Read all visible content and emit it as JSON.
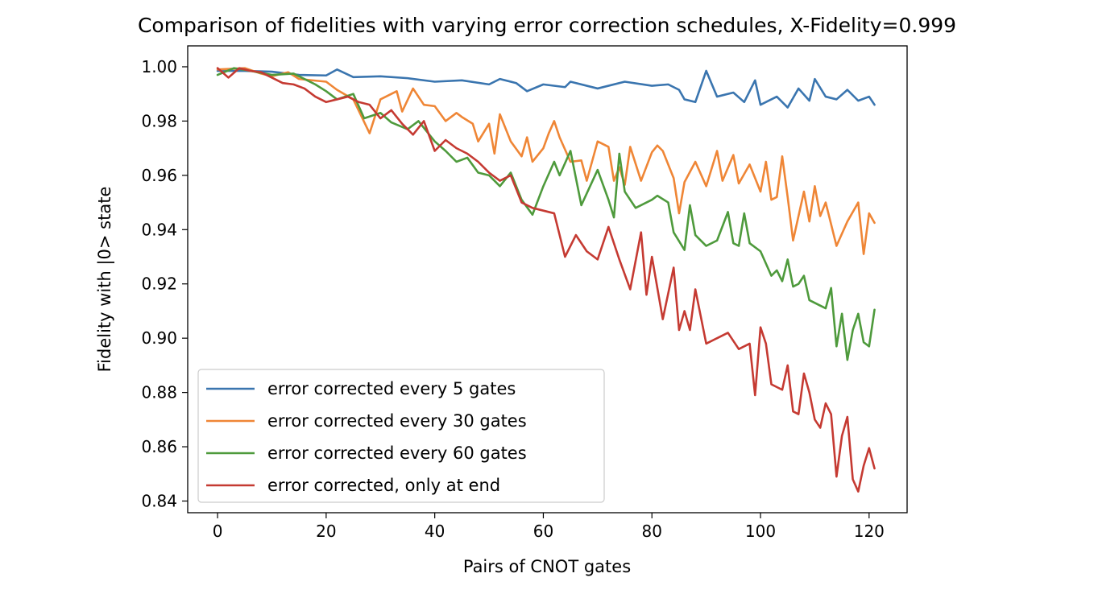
{
  "chart_data": {
    "type": "line",
    "title": "Comparison of fidelities with varying error correction schedules, X-Fidelity=0.999",
    "xlabel": "Pairs of CNOT gates",
    "ylabel": "Fidelity with |0> state",
    "xlim": [
      -5.5,
      127
    ],
    "ylim": [
      0.8357,
      1.0077
    ],
    "xticks": [
      0,
      20,
      40,
      60,
      80,
      100,
      120
    ],
    "xtick_labels": [
      "0",
      "20",
      "40",
      "60",
      "80",
      "100",
      "120"
    ],
    "yticks": [
      0.84,
      0.86,
      0.88,
      0.9,
      0.92,
      0.94,
      0.96,
      0.98,
      1.0
    ],
    "ytick_labels": [
      "0.84",
      "0.86",
      "0.88",
      "0.90",
      "0.92",
      "0.94",
      "0.96",
      "0.98",
      "1.00"
    ],
    "grid": false,
    "legend_position": "lower-left",
    "series": [
      {
        "name": "error corrected every 5 gates",
        "color": "#3a75af",
        "points": [
          [
            0,
            0.9985
          ],
          [
            5,
            0.9985
          ],
          [
            10,
            0.9982
          ],
          [
            15,
            0.997
          ],
          [
            20,
            0.9968
          ],
          [
            22,
            0.999
          ],
          [
            25,
            0.9962
          ],
          [
            30,
            0.9965
          ],
          [
            35,
            0.9958
          ],
          [
            40,
            0.9945
          ],
          [
            45,
            0.995
          ],
          [
            50,
            0.9935
          ],
          [
            52,
            0.9955
          ],
          [
            55,
            0.994
          ],
          [
            57,
            0.991
          ],
          [
            60,
            0.9935
          ],
          [
            64,
            0.9925
          ],
          [
            65,
            0.9945
          ],
          [
            70,
            0.992
          ],
          [
            75,
            0.9945
          ],
          [
            80,
            0.993
          ],
          [
            83,
            0.9935
          ],
          [
            85,
            0.9915
          ],
          [
            86,
            0.988
          ],
          [
            88,
            0.987
          ],
          [
            90,
            0.9985
          ],
          [
            92,
            0.989
          ],
          [
            95,
            0.9905
          ],
          [
            97,
            0.987
          ],
          [
            99,
            0.995
          ],
          [
            100,
            0.986
          ],
          [
            103,
            0.989
          ],
          [
            105,
            0.985
          ],
          [
            107,
            0.992
          ],
          [
            109,
            0.9875
          ],
          [
            110,
            0.9955
          ],
          [
            112,
            0.989
          ],
          [
            114,
            0.988
          ],
          [
            116,
            0.9915
          ],
          [
            118,
            0.9875
          ],
          [
            120,
            0.989
          ],
          [
            121,
            0.986
          ]
        ]
      },
      {
        "name": "error corrected every 30 gates",
        "color": "#ef8636",
        "points": [
          [
            0,
            0.999
          ],
          [
            5,
            0.9995
          ],
          [
            8,
            0.9975
          ],
          [
            10,
            0.9965
          ],
          [
            13,
            0.998
          ],
          [
            15,
            0.9955
          ],
          [
            20,
            0.9945
          ],
          [
            22,
            0.9915
          ],
          [
            25,
            0.988
          ],
          [
            28,
            0.9755
          ],
          [
            30,
            0.988
          ],
          [
            33,
            0.991
          ],
          [
            34,
            0.9835
          ],
          [
            36,
            0.992
          ],
          [
            38,
            0.986
          ],
          [
            40,
            0.9855
          ],
          [
            42,
            0.98
          ],
          [
            44,
            0.983
          ],
          [
            45,
            0.9815
          ],
          [
            47,
            0.979
          ],
          [
            48,
            0.9725
          ],
          [
            50,
            0.979
          ],
          [
            51,
            0.968
          ],
          [
            52,
            0.9825
          ],
          [
            54,
            0.9725
          ],
          [
            56,
            0.967
          ],
          [
            57,
            0.974
          ],
          [
            58,
            0.965
          ],
          [
            60,
            0.97
          ],
          [
            61,
            0.9755
          ],
          [
            62,
            0.98
          ],
          [
            63,
            0.974
          ],
          [
            65,
            0.965
          ],
          [
            67,
            0.9655
          ],
          [
            68,
            0.958
          ],
          [
            70,
            0.9725
          ],
          [
            72,
            0.9705
          ],
          [
            73,
            0.958
          ],
          [
            74,
            0.963
          ],
          [
            75,
            0.9565
          ],
          [
            76,
            0.9705
          ],
          [
            78,
            0.958
          ],
          [
            80,
            0.9685
          ],
          [
            81,
            0.971
          ],
          [
            82,
            0.969
          ],
          [
            84,
            0.959
          ],
          [
            85,
            0.946
          ],
          [
            86,
            0.9575
          ],
          [
            88,
            0.965
          ],
          [
            90,
            0.956
          ],
          [
            92,
            0.969
          ],
          [
            93,
            0.958
          ],
          [
            95,
            0.9675
          ],
          [
            96,
            0.957
          ],
          [
            98,
            0.964
          ],
          [
            100,
            0.954
          ],
          [
            101,
            0.965
          ],
          [
            102,
            0.951
          ],
          [
            103,
            0.952
          ],
          [
            104,
            0.967
          ],
          [
            105,
            0.952
          ],
          [
            106,
            0.936
          ],
          [
            108,
            0.954
          ],
          [
            109,
            0.943
          ],
          [
            110,
            0.956
          ],
          [
            111,
            0.945
          ],
          [
            112,
            0.95
          ],
          [
            113,
            0.942
          ],
          [
            114,
            0.934
          ],
          [
            116,
            0.943
          ],
          [
            118,
            0.95
          ],
          [
            119,
            0.931
          ],
          [
            120,
            0.946
          ],
          [
            121,
            0.9425
          ]
        ]
      },
      {
        "name": "error corrected every 60 gates",
        "color": "#4e9a3c",
        "points": [
          [
            0,
            0.997
          ],
          [
            3,
            0.9995
          ],
          [
            6,
            0.9985
          ],
          [
            10,
            0.997
          ],
          [
            14,
            0.9975
          ],
          [
            18,
            0.9935
          ],
          [
            20,
            0.991
          ],
          [
            22,
            0.988
          ],
          [
            25,
            0.99
          ],
          [
            27,
            0.981
          ],
          [
            30,
            0.983
          ],
          [
            32,
            0.9795
          ],
          [
            35,
            0.977
          ],
          [
            37,
            0.98
          ],
          [
            40,
            0.9725
          ],
          [
            42,
            0.969
          ],
          [
            44,
            0.965
          ],
          [
            46,
            0.9665
          ],
          [
            48,
            0.961
          ],
          [
            50,
            0.96
          ],
          [
            52,
            0.956
          ],
          [
            54,
            0.961
          ],
          [
            56,
            0.951
          ],
          [
            58,
            0.9455
          ],
          [
            60,
            0.956
          ],
          [
            62,
            0.965
          ],
          [
            63,
            0.96
          ],
          [
            65,
            0.969
          ],
          [
            67,
            0.949
          ],
          [
            70,
            0.962
          ],
          [
            72,
            0.951
          ],
          [
            73,
            0.9445
          ],
          [
            74,
            0.968
          ],
          [
            75,
            0.954
          ],
          [
            77,
            0.948
          ],
          [
            80,
            0.951
          ],
          [
            81,
            0.9525
          ],
          [
            83,
            0.95
          ],
          [
            84,
            0.939
          ],
          [
            86,
            0.9325
          ],
          [
            87,
            0.949
          ],
          [
            88,
            0.938
          ],
          [
            90,
            0.934
          ],
          [
            92,
            0.936
          ],
          [
            94,
            0.9465
          ],
          [
            95,
            0.935
          ],
          [
            96,
            0.934
          ],
          [
            97,
            0.946
          ],
          [
            98,
            0.935
          ],
          [
            100,
            0.932
          ],
          [
            102,
            0.923
          ],
          [
            103,
            0.925
          ],
          [
            104,
            0.921
          ],
          [
            105,
            0.929
          ],
          [
            106,
            0.919
          ],
          [
            107,
            0.92
          ],
          [
            108,
            0.923
          ],
          [
            109,
            0.914
          ],
          [
            110,
            0.913
          ],
          [
            112,
            0.911
          ],
          [
            113,
            0.9185
          ],
          [
            114,
            0.897
          ],
          [
            115,
            0.909
          ],
          [
            116,
            0.892
          ],
          [
            117,
            0.903
          ],
          [
            118,
            0.909
          ],
          [
            119,
            0.8985
          ],
          [
            120,
            0.897
          ],
          [
            121,
            0.9105
          ]
        ]
      },
      {
        "name": "error corrected, only at end",
        "color": "#c53a32",
        "points": [
          [
            0,
            0.9995
          ],
          [
            2,
            0.996
          ],
          [
            4,
            0.9995
          ],
          [
            6,
            0.9985
          ],
          [
            8,
            0.998
          ],
          [
            10,
            0.996
          ],
          [
            12,
            0.994
          ],
          [
            14,
            0.9935
          ],
          [
            16,
            0.992
          ],
          [
            18,
            0.989
          ],
          [
            20,
            0.987
          ],
          [
            22,
            0.988
          ],
          [
            24,
            0.989
          ],
          [
            26,
            0.987
          ],
          [
            28,
            0.986
          ],
          [
            30,
            0.981
          ],
          [
            32,
            0.984
          ],
          [
            34,
            0.979
          ],
          [
            36,
            0.975
          ],
          [
            38,
            0.98
          ],
          [
            40,
            0.969
          ],
          [
            42,
            0.973
          ],
          [
            44,
            0.97
          ],
          [
            46,
            0.968
          ],
          [
            48,
            0.965
          ],
          [
            50,
            0.961
          ],
          [
            52,
            0.958
          ],
          [
            54,
            0.96
          ],
          [
            56,
            0.95
          ],
          [
            58,
            0.948
          ],
          [
            60,
            0.947
          ],
          [
            62,
            0.946
          ],
          [
            64,
            0.93
          ],
          [
            66,
            0.938
          ],
          [
            68,
            0.932
          ],
          [
            70,
            0.929
          ],
          [
            72,
            0.941
          ],
          [
            74,
            0.929
          ],
          [
            76,
            0.918
          ],
          [
            78,
            0.939
          ],
          [
            79,
            0.916
          ],
          [
            80,
            0.93
          ],
          [
            82,
            0.907
          ],
          [
            84,
            0.926
          ],
          [
            85,
            0.903
          ],
          [
            86,
            0.91
          ],
          [
            87,
            0.903
          ],
          [
            88,
            0.918
          ],
          [
            90,
            0.898
          ],
          [
            92,
            0.9
          ],
          [
            94,
            0.902
          ],
          [
            96,
            0.896
          ],
          [
            98,
            0.898
          ],
          [
            99,
            0.879
          ],
          [
            100,
            0.904
          ],
          [
            101,
            0.898
          ],
          [
            102,
            0.883
          ],
          [
            104,
            0.881
          ],
          [
            105,
            0.89
          ],
          [
            106,
            0.873
          ],
          [
            107,
            0.872
          ],
          [
            108,
            0.887
          ],
          [
            109,
            0.88
          ],
          [
            110,
            0.87
          ],
          [
            111,
            0.867
          ],
          [
            112,
            0.876
          ],
          [
            113,
            0.872
          ],
          [
            114,
            0.849
          ],
          [
            115,
            0.864
          ],
          [
            116,
            0.871
          ],
          [
            117,
            0.848
          ],
          [
            118,
            0.8435
          ],
          [
            119,
            0.853
          ],
          [
            120,
            0.8595
          ],
          [
            121,
            0.852
          ]
        ]
      }
    ]
  }
}
